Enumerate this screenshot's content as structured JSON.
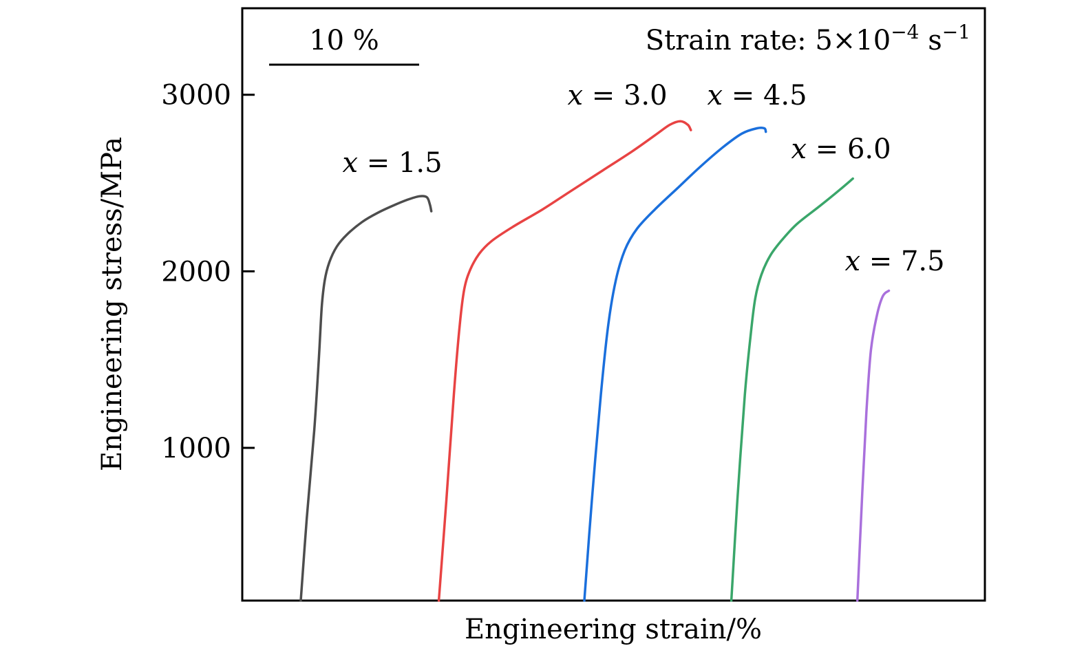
{
  "chart_data": {
    "type": "line",
    "title": "",
    "xlabel": "Engineering strain/%",
    "ylabel": "Engineering stress/MPa",
    "xlim": [
      0,
      49.5
    ],
    "ylim": [
      135,
      3490
    ],
    "yticks": [
      1000,
      2000,
      3000
    ],
    "ytick_labels": [
      "1000",
      "2000",
      "3000"
    ],
    "xticks_shown": false,
    "grid": false,
    "legend": "none (direct labels near curves)",
    "annotations": {
      "scale_bar_label": "10 %",
      "scale_bar_length": 10,
      "strain_rate_prefix": "Strain rate: ",
      "strain_rate_mantissa": "5",
      "strain_rate_times": "×",
      "strain_rate_base": "10",
      "strain_rate_exp": "−4",
      "strain_rate_unit": "s",
      "strain_rate_unit_exp": "−1"
    },
    "series": [
      {
        "name": "x = 1.5",
        "var": "x",
        "eq": " = ",
        "value": "1.5",
        "color": "#4d4d4d",
        "points": [
          [
            3.9,
            135
          ],
          [
            4.3,
            600
          ],
          [
            4.8,
            1100
          ],
          [
            5.1,
            1500
          ],
          [
            5.3,
            1800
          ],
          [
            5.5,
            1950
          ],
          [
            5.8,
            2050
          ],
          [
            6.3,
            2140
          ],
          [
            7.0,
            2210
          ],
          [
            8.0,
            2280
          ],
          [
            9.0,
            2330
          ],
          [
            10.0,
            2370
          ],
          [
            11.0,
            2405
          ],
          [
            11.8,
            2425
          ],
          [
            12.3,
            2420
          ],
          [
            12.5,
            2380
          ],
          [
            12.6,
            2340
          ]
        ]
      },
      {
        "name": "x = 3.0",
        "var": "x",
        "eq": " = ",
        "value": "3.0",
        "color": "#e84343",
        "points": [
          [
            13.1,
            135
          ],
          [
            13.6,
            700
          ],
          [
            14.1,
            1300
          ],
          [
            14.5,
            1700
          ],
          [
            14.8,
            1900
          ],
          [
            15.2,
            2010
          ],
          [
            15.8,
            2100
          ],
          [
            16.6,
            2170
          ],
          [
            18.0,
            2250
          ],
          [
            20.0,
            2350
          ],
          [
            22.0,
            2460
          ],
          [
            24.0,
            2570
          ],
          [
            26.0,
            2680
          ],
          [
            27.5,
            2770
          ],
          [
            28.5,
            2830
          ],
          [
            29.2,
            2850
          ],
          [
            29.7,
            2830
          ],
          [
            29.9,
            2800
          ]
        ]
      },
      {
        "name": "x = 4.5",
        "var": "x",
        "eq": " = ",
        "value": "4.5",
        "color": "#1a6fdc",
        "points": [
          [
            22.8,
            135
          ],
          [
            23.3,
            700
          ],
          [
            23.9,
            1300
          ],
          [
            24.4,
            1700
          ],
          [
            24.9,
            1950
          ],
          [
            25.5,
            2120
          ],
          [
            26.3,
            2240
          ],
          [
            27.5,
            2350
          ],
          [
            29.0,
            2470
          ],
          [
            30.5,
            2590
          ],
          [
            32.0,
            2700
          ],
          [
            33.3,
            2780
          ],
          [
            34.3,
            2810
          ],
          [
            34.8,
            2810
          ],
          [
            34.9,
            2790
          ]
        ]
      },
      {
        "name": "x = 6.0",
        "var": "x",
        "eq": " = ",
        "value": "6.0",
        "color": "#3aa66a",
        "points": [
          [
            32.6,
            135
          ],
          [
            33.0,
            700
          ],
          [
            33.5,
            1300
          ],
          [
            33.9,
            1650
          ],
          [
            34.2,
            1850
          ],
          [
            34.6,
            1980
          ],
          [
            35.2,
            2090
          ],
          [
            36.0,
            2180
          ],
          [
            37.0,
            2270
          ],
          [
            38.5,
            2370
          ],
          [
            39.8,
            2460
          ],
          [
            40.7,
            2525
          ]
        ]
      },
      {
        "name": "x = 7.5",
        "var": "x",
        "eq": " = ",
        "value": "7.5",
        "color": "#a970dc",
        "points": [
          [
            41.0,
            135
          ],
          [
            41.3,
            700
          ],
          [
            41.6,
            1200
          ],
          [
            41.9,
            1550
          ],
          [
            42.3,
            1750
          ],
          [
            42.7,
            1860
          ],
          [
            43.1,
            1890
          ]
        ]
      }
    ]
  }
}
